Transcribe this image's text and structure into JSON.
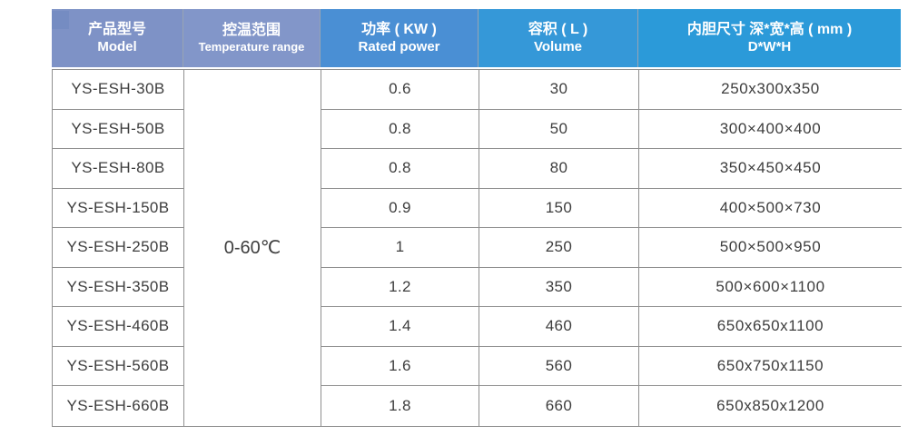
{
  "table": {
    "columns": [
      {
        "zh": "产品型号",
        "en": "Model"
      },
      {
        "zh": "控温范围",
        "en": "Temperature range"
      },
      {
        "zh": "功率 ( KW )",
        "en": "Rated power"
      },
      {
        "zh": "容积 ( L )",
        "en": "Volume"
      },
      {
        "zh": "内胆尺寸 深*宽*高 ( mm )",
        "en": "D*W*H"
      }
    ],
    "temperature_range": "0-60℃",
    "rows": [
      {
        "model": "YS-ESH-30B",
        "power": "0.6",
        "volume": "30",
        "dimensions": "250x300x350"
      },
      {
        "model": "YS-ESH-50B",
        "power": "0.8",
        "volume": "50",
        "dimensions": "300×400×400"
      },
      {
        "model": "YS-ESH-80B",
        "power": "0.8",
        "volume": "80",
        "dimensions": "350×450×450"
      },
      {
        "model": "YS-ESH-150B",
        "power": "0.9",
        "volume": "150",
        "dimensions": "400×500×730"
      },
      {
        "model": "YS-ESH-250B",
        "power": "1",
        "volume": "250",
        "dimensions": "500×500×950"
      },
      {
        "model": "YS-ESH-350B",
        "power": "1.2",
        "volume": "350",
        "dimensions": "500×600×1100"
      },
      {
        "model": "YS-ESH-460B",
        "power": "1.4",
        "volume": "460",
        "dimensions": "650x650x1100"
      },
      {
        "model": "YS-ESH-560B",
        "power": "1.6",
        "volume": "560",
        "dimensions": "650x750x1150"
      },
      {
        "model": "YS-ESH-660B",
        "power": "1.8",
        "volume": "660",
        "dimensions": "650x850x1200"
      }
    ],
    "colors": {
      "header_left": "#7e92c6",
      "header_mid": "#4a8fd4",
      "header_right": "#2b9ad9",
      "header_text": "#ffffff",
      "body_text": "#3d3d3d",
      "grid_border": "#8f8f8f"
    }
  }
}
